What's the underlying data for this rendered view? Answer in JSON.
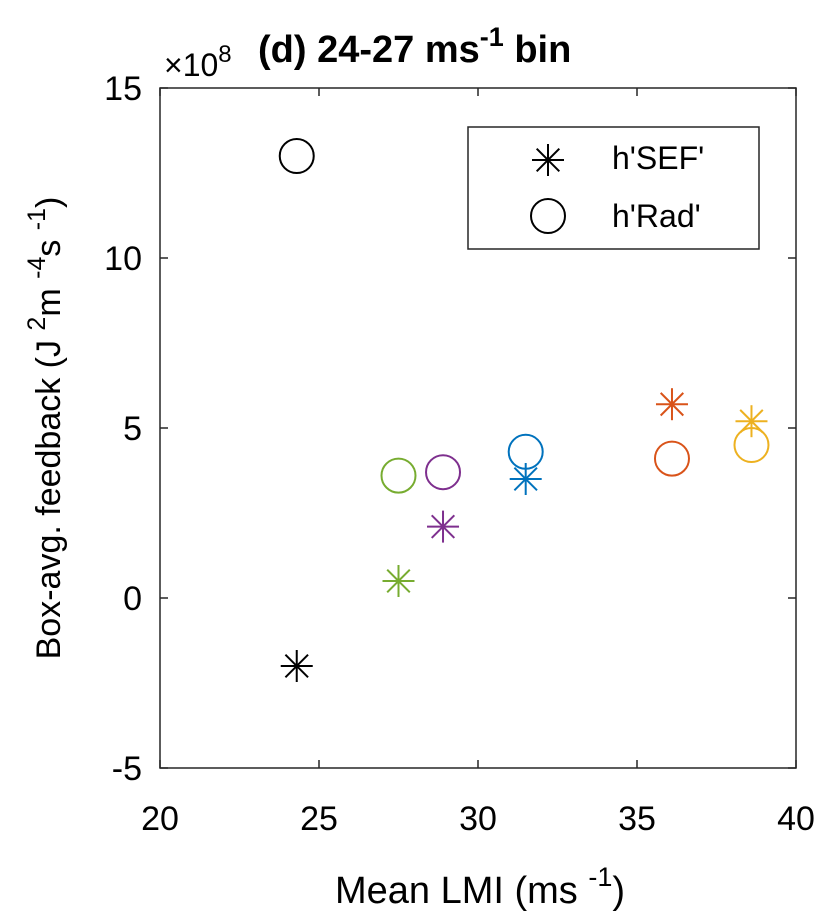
{
  "chart_data": {
    "type": "scatter",
    "title": {
      "main": "(d) 24-27 ms",
      "sup": "-1",
      "tail": " bin"
    },
    "xlabel": {
      "main": "Mean LMI (ms ",
      "sup": "-1",
      "tail": ")"
    },
    "ylabel": {
      "p1": "Box-avg. feedback (J ",
      "s1": "2",
      "p2": "m ",
      "s2": "-4",
      "p3": "s ",
      "s3": "-1",
      "p4": ")"
    },
    "exponent_label": {
      "base": "×10",
      "exp": "8"
    },
    "xlim": [
      20,
      40
    ],
    "ylim": [
      -5,
      15
    ],
    "xticks": [
      {
        "value": 20,
        "label": "20"
      },
      {
        "value": 25,
        "label": "25"
      },
      {
        "value": 30,
        "label": "30"
      },
      {
        "value": 35,
        "label": "35"
      },
      {
        "value": 40,
        "label": "40"
      }
    ],
    "yticks": [
      {
        "value": -5,
        "label": "-5"
      },
      {
        "value": 0,
        "label": "0"
      },
      {
        "value": 5,
        "label": "5"
      },
      {
        "value": 10,
        "label": "10"
      },
      {
        "value": 15,
        "label": "15"
      }
    ],
    "grid": false,
    "legend": {
      "placement": "top-right",
      "entries": [
        {
          "label": "h'SEF'",
          "marker": "star"
        },
        {
          "label": "h'Rad'",
          "marker": "circle"
        }
      ]
    },
    "series": [
      {
        "marker": "star",
        "points": [
          {
            "x": 24.3,
            "y": -2.0,
            "color": "#000000"
          },
          {
            "x": 27.5,
            "y": 0.5,
            "color": "#77AC30"
          },
          {
            "x": 28.9,
            "y": 2.1,
            "color": "#7E2F8E"
          },
          {
            "x": 31.5,
            "y": 3.5,
            "color": "#0072BD"
          },
          {
            "x": 36.1,
            "y": 5.7,
            "color": "#D95319"
          },
          {
            "x": 38.6,
            "y": 5.2,
            "color": "#EDB120"
          }
        ]
      },
      {
        "marker": "circle",
        "points": [
          {
            "x": 24.3,
            "y": 13.0,
            "color": "#000000"
          },
          {
            "x": 27.5,
            "y": 3.6,
            "color": "#77AC30"
          },
          {
            "x": 28.9,
            "y": 3.7,
            "color": "#7E2F8E"
          },
          {
            "x": 31.5,
            "y": 4.3,
            "color": "#0072BD"
          },
          {
            "x": 36.1,
            "y": 4.1,
            "color": "#D95319"
          },
          {
            "x": 38.6,
            "y": 4.5,
            "color": "#EDB120"
          }
        ]
      }
    ]
  }
}
